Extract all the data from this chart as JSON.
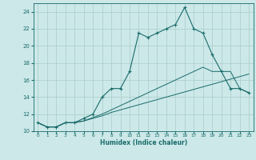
{
  "xlabel": "Humidex (Indice chaleur)",
  "bg_color": "#cce8e8",
  "grid_color": "#aacccc",
  "line_color": "#1a6b6b",
  "xlim": [
    -0.5,
    23.5
  ],
  "ylim": [
    10,
    25
  ],
  "xticks": [
    0,
    1,
    2,
    3,
    4,
    5,
    6,
    7,
    8,
    9,
    10,
    11,
    12,
    13,
    14,
    15,
    16,
    17,
    18,
    19,
    20,
    21,
    22,
    23
  ],
  "yticks": [
    10,
    12,
    14,
    16,
    18,
    20,
    22,
    24
  ],
  "line1_x": [
    0,
    1,
    2,
    3,
    4,
    5,
    6,
    7,
    8,
    9,
    10,
    11,
    12,
    13,
    14,
    15,
    16,
    17,
    18,
    19,
    20,
    21,
    22,
    23
  ],
  "line1_y": [
    11,
    10.5,
    10.5,
    11,
    11,
    11.2,
    11.5,
    11.8,
    12.2,
    12.5,
    12.8,
    13.1,
    13.4,
    13.7,
    14.0,
    14.3,
    14.6,
    14.9,
    15.2,
    15.5,
    15.8,
    16.1,
    16.4,
    16.7
  ],
  "line2_x": [
    0,
    1,
    2,
    3,
    4,
    5,
    6,
    7,
    8,
    9,
    10,
    11,
    12,
    13,
    14,
    15,
    16,
    17,
    18,
    19,
    20,
    21,
    22,
    23
  ],
  "line2_y": [
    11,
    10.5,
    10.5,
    11,
    11,
    11.2,
    11.6,
    12.0,
    12.5,
    13.0,
    13.5,
    14.0,
    14.5,
    15.0,
    15.5,
    16.0,
    16.5,
    17.0,
    17.5,
    17.0,
    17.0,
    17.0,
    15.0,
    14.5
  ],
  "line3_x": [
    0,
    1,
    2,
    3,
    4,
    5,
    6,
    7,
    8,
    9,
    10,
    11,
    12,
    13,
    14,
    15,
    16,
    17,
    18,
    19,
    20,
    21,
    22,
    23
  ],
  "line3_y": [
    11,
    10.5,
    10.5,
    11,
    11,
    11.5,
    12,
    14,
    15,
    15,
    17,
    21.5,
    21,
    21.5,
    22,
    22.5,
    24.5,
    22,
    21.5,
    19,
    17,
    15,
    15,
    14.5
  ]
}
